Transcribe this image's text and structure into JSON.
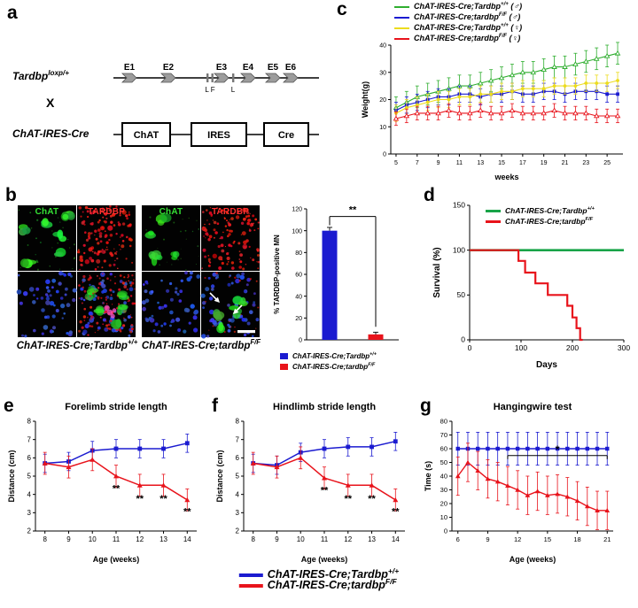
{
  "panels": {
    "a": {
      "label": "a",
      "allele": "Tardbp^{loxp/+}",
      "cross": "X",
      "driver": "ChAT-IRES-Cre",
      "exons": [
        "E1",
        "E2",
        "E3",
        "E4",
        "E5",
        "E6"
      ],
      "sites": [
        "L F",
        "L"
      ],
      "cassette": [
        "ChAT",
        "IRES",
        "Cre"
      ]
    },
    "b": {
      "label": "b",
      "stains": [
        "ChAT",
        "TARDBP"
      ],
      "captions": [
        "ChAT-IRES-Cre;Tardbp^{+/+}",
        "ChAT-IRES-Cre;tardbp^{F/F}"
      ],
      "legend": [
        {
          "color": "#1b1bd0",
          "text": "ChAT-IRES-Cre;Tardbp^{+/+}"
        },
        {
          "color": "#e8131b",
          "text": "ChAT-IRES-Cre;tardbp^{F/F}"
        }
      ]
    },
    "c": {
      "label": "c",
      "legend": [
        {
          "color": "#2fae2f",
          "text": "ChAT-IRES-Cre;Tardbp^{+/+} (♂)"
        },
        {
          "color": "#1b1bd0",
          "text": "ChAT-IRES-Cre;tardbp^{F/F} (♂)"
        },
        {
          "color": "#ecdc1e",
          "text": "ChAT-IRES-Cre;Tardbp^{+/+} (♀)"
        },
        {
          "color": "#e8131b",
          "text": "ChAT-IRES-Cre;tardbp^{F/F} (♀)"
        }
      ]
    },
    "d": {
      "label": "d",
      "legend": [
        {
          "color": "#18a348",
          "text": "ChAT-IRES-Cre;Tardbp^{+/+}"
        },
        {
          "color": "#e8131b",
          "text": "ChAT-IRES-Cre;tardbp^{F/F}"
        }
      ]
    },
    "e": {
      "label": "e"
    },
    "f": {
      "label": "f"
    },
    "g": {
      "label": "g"
    }
  },
  "footer_legend": [
    {
      "color": "#1b1bd0",
      "text": "ChAT-IRES-Cre;Tardbp^{+/+}"
    },
    {
      "color": "#e8131b",
      "text": "ChAT-IRES-Cre;tardbp^{F/F}"
    }
  ],
  "chart_data": [
    {
      "id": "weight",
      "type": "line",
      "xlabel": "weeks",
      "ylabel": "Weight(g)",
      "xlim": [
        4.5,
        26.5
      ],
      "ylim": [
        0,
        40
      ],
      "xticks": [
        5,
        7,
        9,
        11,
        13,
        15,
        17,
        19,
        21,
        23,
        25
      ],
      "yticks": [
        0,
        10,
        20,
        30,
        40
      ],
      "x": [
        5,
        6,
        7,
        8,
        9,
        10,
        11,
        12,
        13,
        14,
        15,
        16,
        17,
        18,
        19,
        20,
        21,
        22,
        23,
        24,
        25,
        26
      ],
      "series": [
        {
          "name": "ChAT-IRES-Cre;Tardbp+/+ (male)",
          "color": "#2fae2f",
          "marker": "tri-open",
          "err": 4,
          "values": [
            17,
            19,
            21,
            22,
            23,
            24,
            25,
            25,
            26,
            27,
            28,
            29,
            30,
            30,
            31,
            32,
            32,
            33,
            34,
            35,
            36,
            37
          ]
        },
        {
          "name": "ChAT-IRES-Cre;tardbpF/F (male)",
          "color": "#1b1bd0",
          "marker": "square",
          "err": 3,
          "values": [
            16,
            18,
            19,
            20,
            21,
            21,
            22,
            22,
            21,
            22,
            22,
            23,
            22,
            22,
            23,
            23,
            22,
            23,
            23,
            23,
            22,
            22
          ]
        },
        {
          "name": "ChAT-IRES-Cre;Tardbp+/+ (female)",
          "color": "#ecdc1e",
          "marker": "circle",
          "err": 3,
          "values": [
            15,
            17,
            18,
            19,
            20,
            20,
            21,
            21,
            22,
            22,
            23,
            23,
            24,
            24,
            24,
            25,
            25,
            25,
            26,
            26,
            26,
            27
          ]
        },
        {
          "name": "ChAT-IRES-Cre;tardbpF/F (female)",
          "color": "#e8131b",
          "marker": "tri-open",
          "err": 2.5,
          "values": [
            13,
            14,
            15,
            15,
            15,
            16,
            15,
            15,
            16,
            15,
            15,
            16,
            15,
            15,
            15,
            16,
            15,
            15,
            15,
            14,
            14,
            14
          ]
        }
      ]
    },
    {
      "id": "tardbp_mn",
      "type": "bar",
      "ylabel": "% TARDBP-positive MN",
      "ylim": [
        0,
        120
      ],
      "yticks": [
        0,
        20,
        40,
        60,
        80,
        100,
        120
      ],
      "categories": [
        "ChAT-IRES-Cre;Tardbp+/+",
        "ChAT-IRES-Cre;tardbpF/F"
      ],
      "values": [
        100,
        5
      ],
      "errors": [
        3,
        2
      ],
      "colors": [
        "#1b1bd0",
        "#e8131b"
      ],
      "sig": "**"
    },
    {
      "id": "survival",
      "type": "step",
      "xlabel": "Days",
      "ylabel": "Survival (%)",
      "xlim": [
        0,
        300
      ],
      "ylim": [
        0,
        150
      ],
      "xticks": [
        0,
        100,
        200,
        300
      ],
      "yticks": [
        0,
        50,
        100,
        150
      ],
      "series": [
        {
          "name": "ChAT-IRES-Cre;Tardbp+/+",
          "color": "#18a348",
          "lw": 2.6,
          "points": [
            [
              0,
              100
            ],
            [
              300,
              100
            ]
          ]
        },
        {
          "name": "ChAT-IRES-Cre;tardbpF/F",
          "color": "#e8131b",
          "lw": 2.2,
          "points": [
            [
              0,
              100
            ],
            [
              95,
              100
            ],
            [
              95,
              88
            ],
            [
              108,
              88
            ],
            [
              108,
              75
            ],
            [
              128,
              75
            ],
            [
              128,
              63
            ],
            [
              152,
              63
            ],
            [
              152,
              50
            ],
            [
              190,
              50
            ],
            [
              190,
              38
            ],
            [
              200,
              38
            ],
            [
              200,
              25
            ],
            [
              208,
              25
            ],
            [
              208,
              13
            ],
            [
              215,
              13
            ],
            [
              215,
              0
            ],
            [
              220,
              0
            ]
          ]
        }
      ]
    },
    {
      "id": "forelimb",
      "type": "line",
      "title": "Forelimb stride length",
      "xlabel": "Age (weeks)",
      "ylabel": "Distance (cm)",
      "xlim": [
        7.6,
        14.4
      ],
      "ylim": [
        2,
        8
      ],
      "xticks": [
        8,
        9,
        10,
        11,
        12,
        13,
        14
      ],
      "yticks": [
        2,
        3,
        4,
        5,
        6,
        7,
        8
      ],
      "x": [
        8,
        9,
        10,
        11,
        12,
        13,
        14
      ],
      "series": [
        {
          "name": "ChAT-IRES-Cre;Tardbp+/+",
          "color": "#1b1bd0",
          "marker": "square",
          "err": 0.5,
          "values": [
            5.7,
            5.8,
            6.4,
            6.5,
            6.5,
            6.5,
            6.8
          ]
        },
        {
          "name": "ChAT-IRES-Cre;tardbpF/F",
          "color": "#e8131b",
          "marker": "tri",
          "err": 0.6,
          "values": [
            5.7,
            5.5,
            5.9,
            5.0,
            4.5,
            4.5,
            3.7
          ]
        }
      ],
      "sig": [
        {
          "x": 11,
          "y": 4.15,
          "label": "**"
        },
        {
          "x": 12,
          "y": 3.6,
          "label": "**"
        },
        {
          "x": 13,
          "y": 3.6,
          "label": "**"
        },
        {
          "x": 14,
          "y": 2.9,
          "label": "**"
        }
      ]
    },
    {
      "id": "hindlimb",
      "type": "line",
      "title": "Hindlimb stride length",
      "xlabel": "Age (weeks)",
      "ylabel": "Distance (cm)",
      "xlim": [
        7.6,
        14.4
      ],
      "ylim": [
        2,
        8
      ],
      "xticks": [
        8,
        9,
        10,
        11,
        12,
        13,
        14
      ],
      "yticks": [
        2,
        3,
        4,
        5,
        6,
        7,
        8
      ],
      "x": [
        8,
        9,
        10,
        11,
        12,
        13,
        14
      ],
      "series": [
        {
          "name": "ChAT-IRES-Cre;Tardbp+/+",
          "color": "#1b1bd0",
          "marker": "square",
          "err": 0.5,
          "values": [
            5.7,
            5.6,
            6.3,
            6.5,
            6.6,
            6.6,
            6.9
          ]
        },
        {
          "name": "ChAT-IRES-Cre;tardbpF/F",
          "color": "#e8131b",
          "marker": "tri",
          "err": 0.6,
          "values": [
            5.7,
            5.5,
            6.0,
            4.9,
            4.5,
            4.5,
            3.7
          ]
        }
      ],
      "sig": [
        {
          "x": 11,
          "y": 4.05,
          "label": "**"
        },
        {
          "x": 12,
          "y": 3.6,
          "label": "**"
        },
        {
          "x": 13,
          "y": 3.6,
          "label": "**"
        },
        {
          "x": 14,
          "y": 2.9,
          "label": "**"
        }
      ]
    },
    {
      "id": "hangingwire",
      "type": "line",
      "title": "Hangingwire test",
      "xlabel": "Age (weeks)",
      "ylabel": "Time (s)",
      "xlim": [
        5.4,
        21.6
      ],
      "ylim": [
        0,
        80
      ],
      "xticks": [
        6,
        9,
        12,
        15,
        18,
        21
      ],
      "yticks": [
        0,
        10,
        20,
        30,
        40,
        50,
        60,
        70,
        80
      ],
      "x": [
        6,
        7,
        8,
        9,
        10,
        11,
        12,
        13,
        14,
        15,
        16,
        17,
        18,
        19,
        20,
        21
      ],
      "series": [
        {
          "name": "ChAT-IRES-Cre;Tardbp+/+",
          "color": "#1b1bd0",
          "marker": "square",
          "err": 12,
          "values": [
            60,
            60,
            60,
            60,
            60,
            60,
            60,
            60,
            60,
            60,
            60,
            60,
            60,
            60,
            60,
            60
          ]
        },
        {
          "name": "ChAT-IRES-Cre;tardbpF/F",
          "color": "#e8131b",
          "marker": "tri",
          "err": 14,
          "values": [
            40,
            50,
            44,
            38,
            36,
            33,
            30,
            26,
            29,
            26,
            27,
            25,
            22,
            18,
            15,
            15
          ]
        }
      ],
      "bracket": {
        "x1": 11,
        "x2": 21,
        "y": 55,
        "label": "*"
      }
    }
  ]
}
